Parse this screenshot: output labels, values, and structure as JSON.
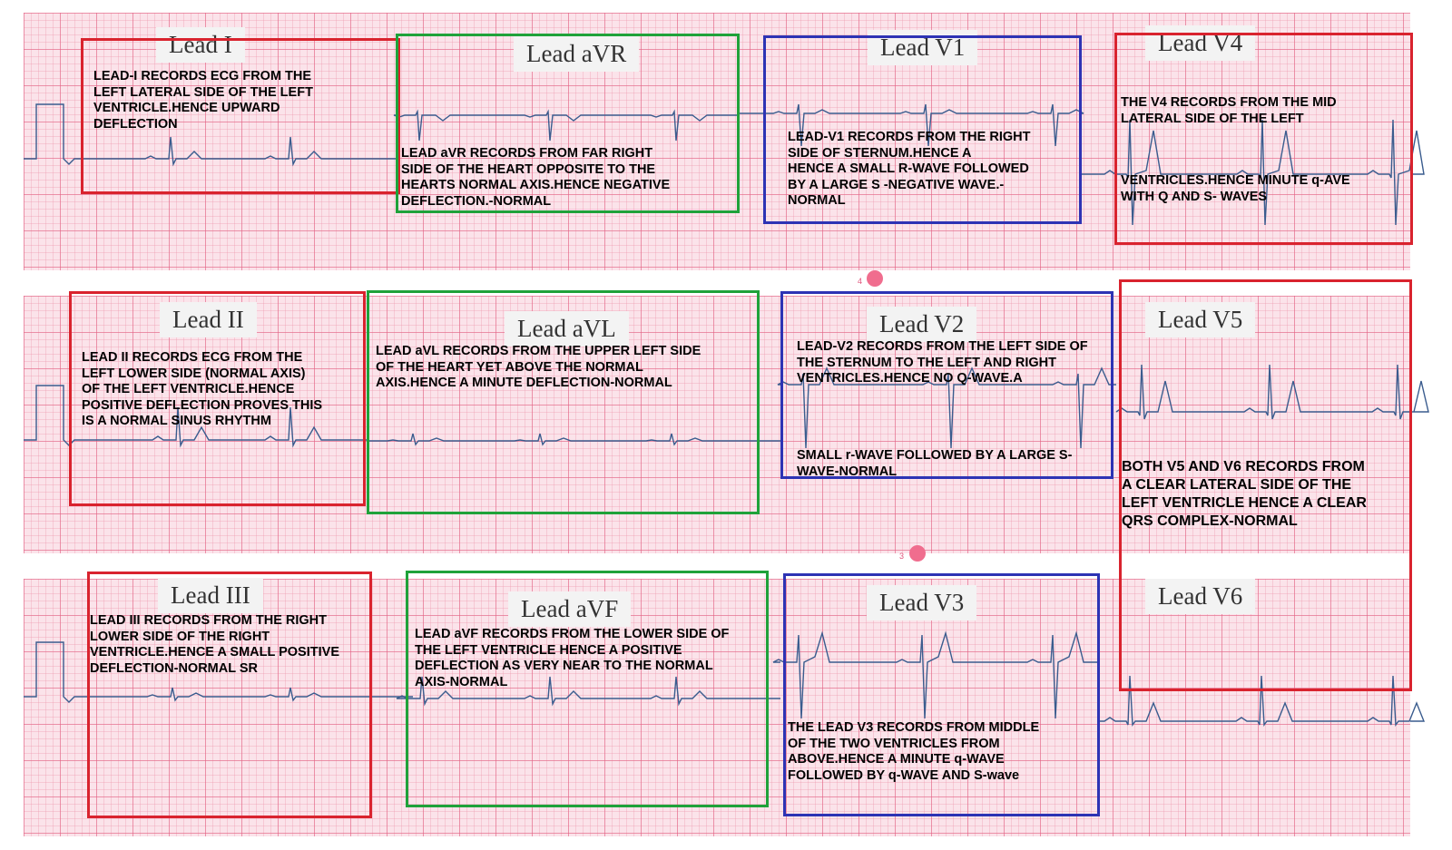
{
  "accent_colors": {
    "red_box": "#d9232e",
    "green_box": "#1fa23a",
    "blue_box": "#2d33b4",
    "trace": "#3a5c8e",
    "grid": "#e26082"
  },
  "leads": {
    "I": {
      "label": "Lead I",
      "note": "LEAD-I RECORDS ECG FROM THE\nLEFT LATERAL SIDE OF THE LEFT\nVENTRICLE.HENCE UPWARD\nDEFLECTION"
    },
    "aVR": {
      "label": "Lead aVR",
      "note": " LEAD aVR RECORDS FROM FAR RIGHT\n SIDE OF THE HEART OPPOSITE TO THE\nHEARTS NORMAL AXIS.HENCE NEGATIVE\nDEFLECTION.-NORMAL"
    },
    "V1": {
      "label": "Lead V1",
      "note": " LEAD-V1 RECORDS FROM THE RIGHT\nSIDE OF STERNUM.HENCE A\nHENCE A SMALL R-WAVE FOLLOWED\nBY A LARGE S -NEGATIVE WAVE.-\nNORMAL"
    },
    "V4": {
      "label": "Lead V4",
      "note_top": "THE V4 RECORDS FROM THE MID\nLATERAL SIDE OF THE LEFT",
      "note_bottom": "  VENTRICLES.HENCE MINUTE q-AVE\nWITH Q AND S- WAVES"
    },
    "II": {
      "label": "Lead II",
      "note": "LEAD II RECORDS ECG FROM THE\nLEFT LOWER SIDE (NORMAL AXIS)\nOF THE LEFT VENTRICLE.HENCE\nPOSITIVE DEFLECTION PROVES THIS\nIS A NORMAL SINUS RHYTHM"
    },
    "aVL": {
      "label": "Lead aVL",
      "note": "LEAD aVL RECORDS FROM THE UPPER LEFT SIDE\nOF THE HEART YET ABOVE THE NORMAL\nAXIS.HENCE A MINUTE DEFLECTION-NORMAL"
    },
    "V2": {
      "label": "Lead V2",
      "note_top": "LEAD-V2 RECORDS FROM THE LEFT SIDE OF\nTHE STERNUM TO THE LEFT AND RIGHT\nVENTRICLES.HENCE NO Q-WAVE.A",
      "note_bottom": "SMALL r-WAVE FOLLOWED BY A LARGE S-\nWAVE-NORMAL"
    },
    "V5": {
      "label": "Lead V5"
    },
    "V5V6_note": "BOTH V5 AND V6 RECORDS FROM\nA CLEAR LATERAL SIDE OF THE\nLEFT VENTRICLE HENCE A CLEAR\nQRS COMPLEX-NORMAL",
    "III": {
      "label": "Lead III",
      "note": "LEAD III RECORDS FROM THE RIGHT\nLOWER SIDE OF THE RIGHT\nVENTRICLE.HENCE A SMALL POSITIVE\nDEFLECTION-NORMAL SR"
    },
    "aVF": {
      "label": "Lead aVF",
      "note": "LEAD aVF RECORDS FROM THE LOWER SIDE OF\nTHE LEFT VENTRICLE HENCE A POSITIVE\nDEFLECTION AS VERY NEAR TO THE NORMAL\nAXIS-NORMAL"
    },
    "V3": {
      "label": "Lead V3",
      "note": "THE LEAD V3 RECORDS FROM MIDDLE\nOF THE TWO VENTRICLES FROM\nABOVE.HENCE A MINUTE q-WAVE\nFOLLOWED BY q-WAVE AND S-wave"
    },
    "V6": {
      "label": "Lead V6"
    }
  },
  "markers": {
    "row1": "4",
    "row2": "3"
  }
}
